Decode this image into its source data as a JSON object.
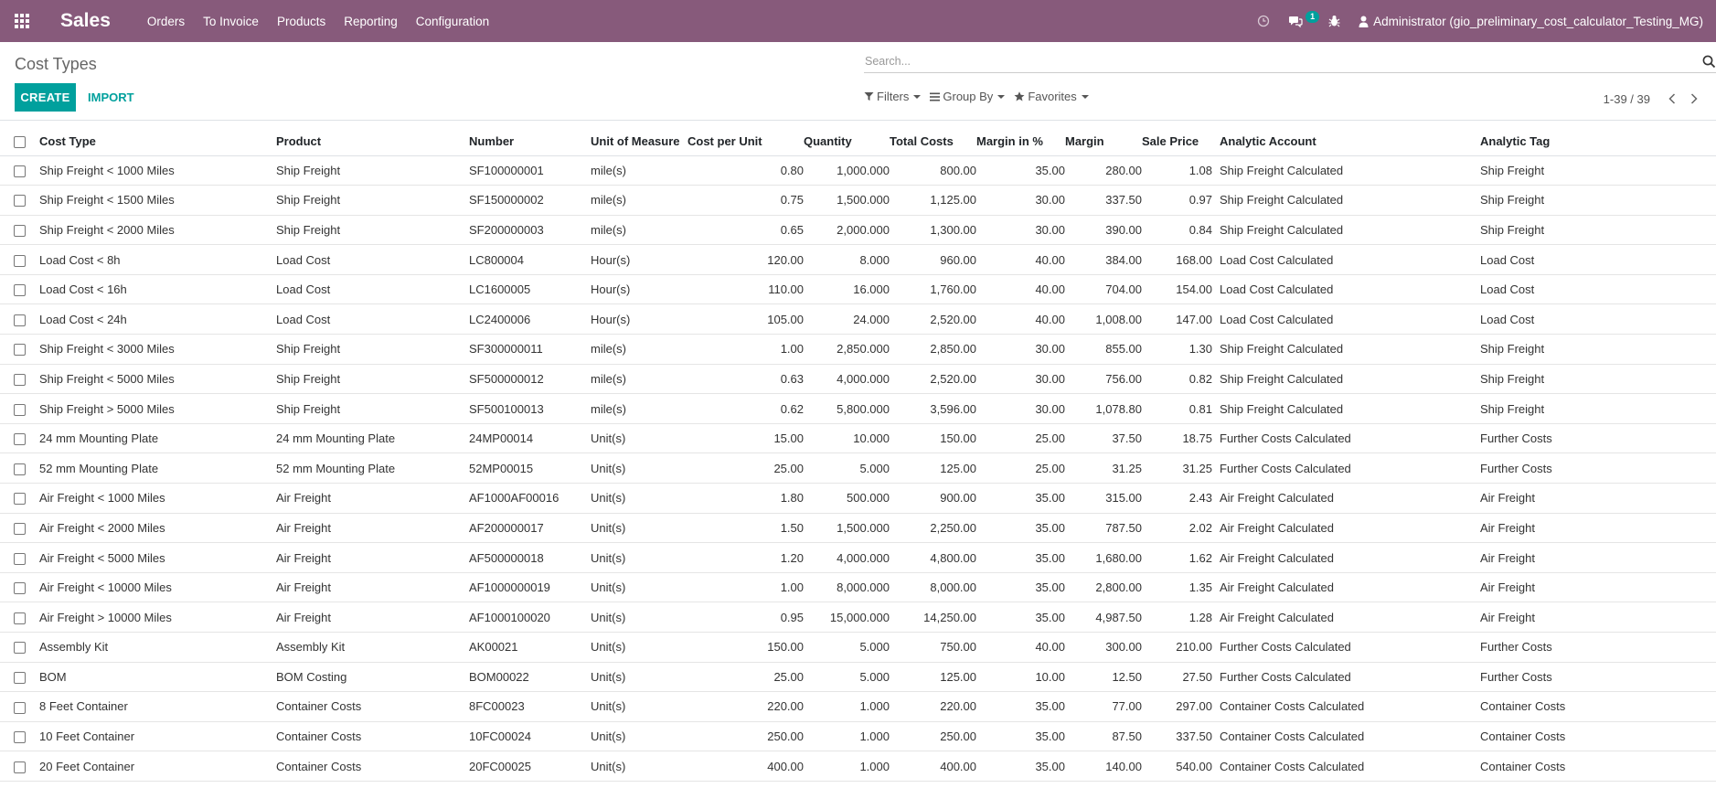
{
  "navbar": {
    "app_name": "Sales",
    "menu": [
      "Orders",
      "To Invoice",
      "Products",
      "Reporting",
      "Configuration"
    ],
    "chat_badge": "1",
    "user": "Administrator (gio_preliminary_cost_calculator_Testing_MG)",
    "icons": [
      "apps-grid-icon",
      "clock-icon",
      "chat-icon",
      "bug-icon",
      "user-icon"
    ]
  },
  "control": {
    "title": "Cost Types",
    "create": "CREATE",
    "import": "IMPORT",
    "search_placeholder": "Search...",
    "filters": "Filters",
    "group_by": "Group By",
    "favorites": "Favorites",
    "pager": "1-39 / 39"
  },
  "colors": {
    "brand": "#875A7B",
    "accent": "#00A09D"
  },
  "table": {
    "headers": [
      "Cost Type",
      "Product",
      "Number",
      "Unit of Measure",
      "Cost per Unit",
      "Quantity",
      "Total Costs",
      "Margin in %",
      "Margin",
      "Sale Price",
      "Analytic Account",
      "Analytic Tag"
    ],
    "rows": [
      [
        "Ship Freight < 1000 Miles",
        "Ship Freight",
        "SF100000001",
        "mile(s)",
        "0.80",
        "1,000.000",
        "800.00",
        "35.00",
        "280.00",
        "1.08",
        "Ship Freight Calculated",
        "Ship Freight"
      ],
      [
        "Ship Freight < 1500 Miles",
        "Ship Freight",
        "SF150000002",
        "mile(s)",
        "0.75",
        "1,500.000",
        "1,125.00",
        "30.00",
        "337.50",
        "0.97",
        "Ship Freight Calculated",
        "Ship Freight"
      ],
      [
        "Ship Freight < 2000 Miles",
        "Ship Freight",
        "SF200000003",
        "mile(s)",
        "0.65",
        "2,000.000",
        "1,300.00",
        "30.00",
        "390.00",
        "0.84",
        "Ship Freight Calculated",
        "Ship Freight"
      ],
      [
        "Load Cost < 8h",
        "Load Cost",
        "LC800004",
        "Hour(s)",
        "120.00",
        "8.000",
        "960.00",
        "40.00",
        "384.00",
        "168.00",
        "Load Cost Calculated",
        "Load Cost"
      ],
      [
        "Load Cost < 16h",
        "Load Cost",
        "LC1600005",
        "Hour(s)",
        "110.00",
        "16.000",
        "1,760.00",
        "40.00",
        "704.00",
        "154.00",
        "Load Cost Calculated",
        "Load Cost"
      ],
      [
        "Load Cost < 24h",
        "Load Cost",
        "LC2400006",
        "Hour(s)",
        "105.00",
        "24.000",
        "2,520.00",
        "40.00",
        "1,008.00",
        "147.00",
        "Load Cost Calculated",
        "Load Cost"
      ],
      [
        "Ship Freight < 3000 Miles",
        "Ship Freight",
        "SF300000011",
        "mile(s)",
        "1.00",
        "2,850.000",
        "2,850.00",
        "30.00",
        "855.00",
        "1.30",
        "Ship Freight Calculated",
        "Ship Freight"
      ],
      [
        "Ship Freight < 5000 Miles",
        "Ship Freight",
        "SF500000012",
        "mile(s)",
        "0.63",
        "4,000.000",
        "2,520.00",
        "30.00",
        "756.00",
        "0.82",
        "Ship Freight Calculated",
        "Ship Freight"
      ],
      [
        "Ship Freight > 5000 Miles",
        "Ship Freight",
        "SF500100013",
        "mile(s)",
        "0.62",
        "5,800.000",
        "3,596.00",
        "30.00",
        "1,078.80",
        "0.81",
        "Ship Freight Calculated",
        "Ship Freight"
      ],
      [
        "24 mm Mounting Plate",
        "24 mm Mounting Plate",
        "24MP00014",
        "Unit(s)",
        "15.00",
        "10.000",
        "150.00",
        "25.00",
        "37.50",
        "18.75",
        "Further Costs Calculated",
        "Further Costs"
      ],
      [
        "52 mm Mounting Plate",
        "52 mm Mounting Plate",
        "52MP00015",
        "Unit(s)",
        "25.00",
        "5.000",
        "125.00",
        "25.00",
        "31.25",
        "31.25",
        "Further Costs Calculated",
        "Further Costs"
      ],
      [
        "Air Freight < 1000 Miles",
        "Air Freight",
        "AF1000AF00016",
        "Unit(s)",
        "1.80",
        "500.000",
        "900.00",
        "35.00",
        "315.00",
        "2.43",
        "Air Freight Calculated",
        "Air Freight"
      ],
      [
        "Air Freight < 2000 Miles",
        "Air Freight",
        "AF200000017",
        "Unit(s)",
        "1.50",
        "1,500.000",
        "2,250.00",
        "35.00",
        "787.50",
        "2.02",
        "Air Freight Calculated",
        "Air Freight"
      ],
      [
        "Air Freight < 5000 Miles",
        "Air Freight",
        "AF500000018",
        "Unit(s)",
        "1.20",
        "4,000.000",
        "4,800.00",
        "35.00",
        "1,680.00",
        "1.62",
        "Air Freight Calculated",
        "Air Freight"
      ],
      [
        "Air Freight < 10000 Miles",
        "Air Freight",
        "AF1000000019",
        "Unit(s)",
        "1.00",
        "8,000.000",
        "8,000.00",
        "35.00",
        "2,800.00",
        "1.35",
        "Air Freight Calculated",
        "Air Freight"
      ],
      [
        "Air Freight > 10000 Miles",
        "Air Freight",
        "AF1000100020",
        "Unit(s)",
        "0.95",
        "15,000.000",
        "14,250.00",
        "35.00",
        "4,987.50",
        "1.28",
        "Air Freight Calculated",
        "Air Freight"
      ],
      [
        "Assembly Kit",
        "Assembly Kit",
        "AK00021",
        "Unit(s)",
        "150.00",
        "5.000",
        "750.00",
        "40.00",
        "300.00",
        "210.00",
        "Further Costs Calculated",
        "Further Costs"
      ],
      [
        "BOM",
        "BOM Costing",
        "BOM00022",
        "Unit(s)",
        "25.00",
        "5.000",
        "125.00",
        "10.00",
        "12.50",
        "27.50",
        "Further Costs Calculated",
        "Further Costs"
      ],
      [
        "8 Feet Container",
        "Container Costs",
        "8FC00023",
        "Unit(s)",
        "220.00",
        "1.000",
        "220.00",
        "35.00",
        "77.00",
        "297.00",
        "Container Costs Calculated",
        "Container Costs"
      ],
      [
        "10 Feet Container",
        "Container Costs",
        "10FC00024",
        "Unit(s)",
        "250.00",
        "1.000",
        "250.00",
        "35.00",
        "87.50",
        "337.50",
        "Container Costs Calculated",
        "Container Costs"
      ],
      [
        "20 Feet Container",
        "Container Costs",
        "20FC00025",
        "Unit(s)",
        "400.00",
        "1.000",
        "400.00",
        "35.00",
        "140.00",
        "540.00",
        "Container Costs Calculated",
        "Container Costs"
      ]
    ]
  }
}
